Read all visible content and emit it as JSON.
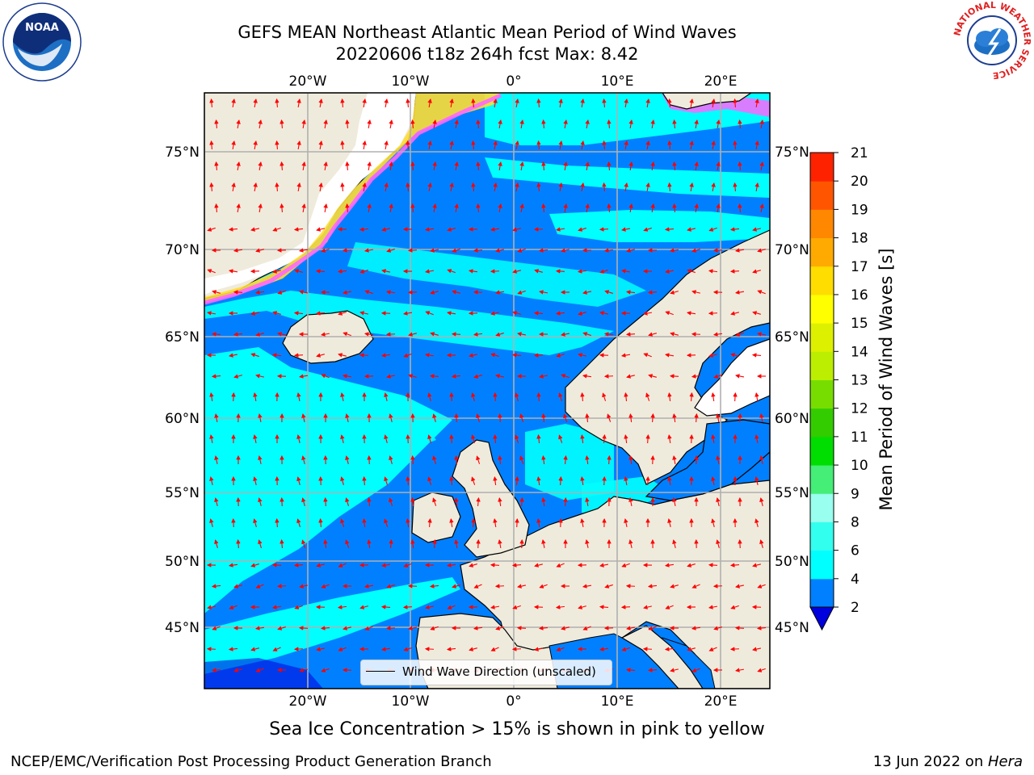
{
  "title": {
    "line1": "GEFS MEAN Northeast Atlantic Mean Period of Wind Waves",
    "line2": "20220606 t18z 264h fcst   Max: 8.42"
  },
  "logos": {
    "left": "NOAA",
    "right_ring_text": "NATIONAL WEATHER SERVICE"
  },
  "map": {
    "lon_labels": [
      "20°W",
      "10°W",
      "0°",
      "10°E",
      "20°E"
    ],
    "lat_labels": [
      "75°N",
      "70°N",
      "65°N",
      "60°N",
      "55°N",
      "50°N",
      "45°N"
    ],
    "land_color": "#efebdc",
    "ocean_colors": {
      "2-4": "#0080ff",
      "4-6": "#00ffff"
    },
    "ice_colors": [
      "#ff66ff",
      "#ffaa55",
      "#ffdd33"
    ],
    "arrow_color": "#ff0000"
  },
  "legend": {
    "label": "Wind Wave Direction (unscaled)"
  },
  "colorbar": {
    "label": "Mean Period of Wind Waves [s]",
    "ticks": [
      "2",
      "4",
      "6",
      "8",
      "9",
      "10",
      "11",
      "12",
      "13",
      "14",
      "15",
      "16",
      "17",
      "18",
      "19",
      "20",
      "21"
    ],
    "colors": [
      "#0080ff",
      "#00ffff",
      "#33ffee",
      "#99ffee",
      "#44ee77",
      "#00dd00",
      "#33cc00",
      "#77dd00",
      "#bbee00",
      "#ddf000",
      "#ffff00",
      "#ffdd00",
      "#ffaa00",
      "#ff8800",
      "#ff5500",
      "#ff2200",
      "#ff0000"
    ],
    "under_color": "#0000dd"
  },
  "subcaption": "Sea Ice Concentration > 15% is shown in pink to yellow",
  "footer": {
    "left": "NCEP/EMC/Verification Post Processing Product Generation Branch",
    "date": "13 Jun 2022 on ",
    "machine": "Hera"
  }
}
